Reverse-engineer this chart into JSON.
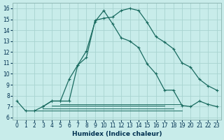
{
  "xlabel": "Humidex (Indice chaleur)",
  "xlim": [
    0,
    23
  ],
  "ylim": [
    6,
    16
  ],
  "yticks": [
    6,
    7,
    8,
    9,
    10,
    11,
    12,
    13,
    14,
    15,
    16
  ],
  "xticks": [
    0,
    1,
    2,
    3,
    4,
    5,
    6,
    7,
    8,
    9,
    10,
    11,
    12,
    13,
    14,
    15,
    16,
    17,
    18,
    19,
    20,
    21,
    22,
    23
  ],
  "bg_color": "#c8ecea",
  "grid_color": "#a8d4d0",
  "line_color": "#1a6b60",
  "curve1_x": [
    0,
    1,
    2,
    3,
    4,
    5,
    6,
    7,
    8,
    9,
    10,
    11,
    12,
    13,
    14,
    15,
    16,
    17,
    18,
    19,
    20,
    21,
    22,
    23
  ],
  "curve1_y": [
    7.5,
    6.6,
    6.6,
    7.0,
    7.5,
    7.5,
    9.5,
    10.8,
    12.1,
    14.8,
    15.8,
    14.6,
    13.3,
    13.0,
    12.4,
    10.9,
    10.0,
    8.5,
    8.5,
    7.1,
    7.0,
    7.5,
    7.2,
    7.0
  ],
  "curve2_x": [
    3,
    4,
    5,
    6,
    7,
    8,
    9,
    10,
    11,
    12,
    13,
    14,
    15,
    16,
    17,
    18,
    19,
    20,
    21,
    22,
    23
  ],
  "curve2_y": [
    7.0,
    7.5,
    7.5,
    7.5,
    10.8,
    11.5,
    14.9,
    15.1,
    15.2,
    15.8,
    16.0,
    15.8,
    14.7,
    13.4,
    12.9,
    12.3,
    11.0,
    10.6,
    9.5,
    8.9,
    8.5
  ],
  "flat_lines": [
    {
      "x_start": 2,
      "x_end": 19,
      "y": 6.65
    },
    {
      "x_start": 3,
      "x_end": 18,
      "y": 6.85
    },
    {
      "x_start": 4,
      "x_end": 17,
      "y": 7.05
    },
    {
      "x_start": 5,
      "x_end": 19,
      "y": 7.2
    }
  ]
}
